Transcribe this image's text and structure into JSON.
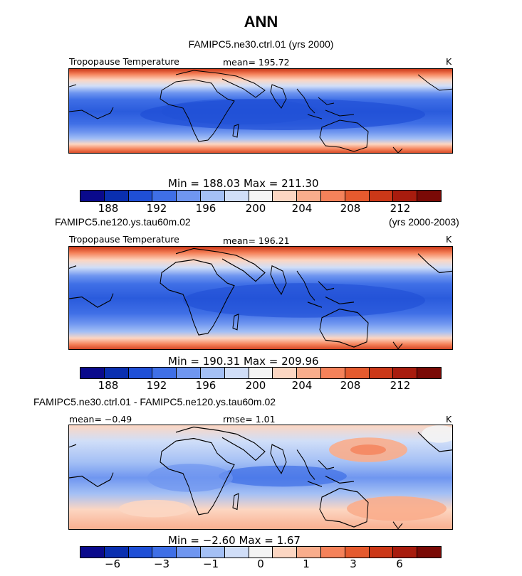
{
  "title": "ANN",
  "colors": [
    "#0a0a8c",
    "#0a2fb0",
    "#1f4fd6",
    "#3f6fe6",
    "#6f96f0",
    "#a4c0f5",
    "#d0def8",
    "#f4f4f4",
    "#fcd6c2",
    "#f9ad8c",
    "#f5825a",
    "#e55a2e",
    "#cc3818",
    "#a81c0e",
    "#7a0a06"
  ],
  "panels": [
    {
      "label": "FAMIPC5.ne30.ctrl.01 (yrs 2000)",
      "left_text": "Tropopause Temperature",
      "mid_text": "mean= 195.72",
      "units": "K",
      "minmax": "Min = 188.03 Max = 211.30",
      "ticks": [
        "188",
        "192",
        "196",
        "200",
        "204",
        "208",
        "212"
      ]
    },
    {
      "label": "FAMIPC5.ne120.ys.tau60m.02",
      "label_right": "(yrs 2000-2003)",
      "left_text": "Tropopause Temperature",
      "mid_text": "mean= 196.21",
      "units": "K",
      "minmax": "Min = 190.31 Max = 209.96",
      "ticks": [
        "188",
        "192",
        "196",
        "200",
        "204",
        "208",
        "212"
      ]
    },
    {
      "label": "FAMIPC5.ne30.ctrl.01 - FAMIPC5.ne120.ys.tau60m.02",
      "left_text": "mean= −0.49",
      "mid_text": "rmse= 1.01",
      "units": "K",
      "minmax": "Min = −2.60 Max = 1.67",
      "ticks": [
        "−6",
        "−3",
        "−1",
        "0",
        "1",
        "3",
        "6"
      ]
    }
  ]
}
